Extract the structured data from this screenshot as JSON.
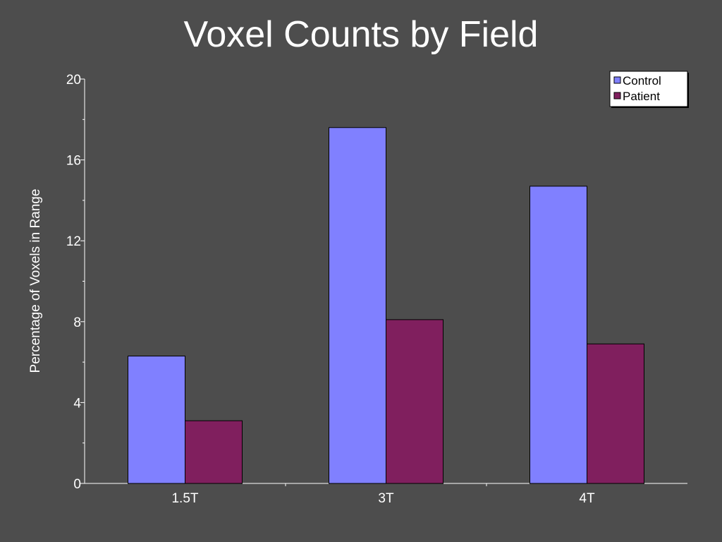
{
  "chart_data": {
    "type": "bar",
    "title": "Voxel Counts by Field",
    "xlabel": "",
    "ylabel": "Percentage of Voxels in Range",
    "categories": [
      "1.5T",
      "3T",
      "4T"
    ],
    "series": [
      {
        "name": "Control",
        "values": [
          6.3,
          17.6,
          14.7
        ],
        "color": "#8080ff"
      },
      {
        "name": "Patient",
        "values": [
          3.1,
          8.1,
          6.9
        ],
        "color": "#801f5e"
      }
    ],
    "ylim": [
      0,
      20
    ],
    "yticks": [
      0,
      4,
      8,
      12,
      16,
      20
    ],
    "grid": false,
    "legend_position": "top-right"
  }
}
